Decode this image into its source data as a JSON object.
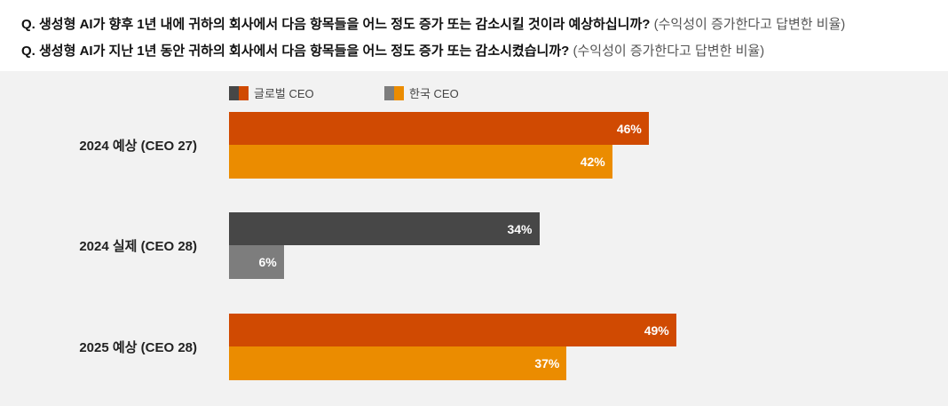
{
  "questions": [
    {
      "text": "Q. 생성형 AI가 향후 1년 내에 귀하의 회사에서 다음 항목들을 어느 정도 증가 또는 감소시킬 것이라 예상하십니까?",
      "note": "(수익성이 증가한다고 답변한 비율)"
    },
    {
      "text": "Q. 생성형 AI가 지난 1년 동안 귀하의 회사에서 다음 항목들을 어느 정도 증가 또는 감소시켰습니까?",
      "note": "(수익성이 증가한다고 답변한 비율)"
    }
  ],
  "chart_data": {
    "type": "bar",
    "orientation": "horizontal",
    "xlim": [
      0,
      100
    ],
    "legend_position": "top",
    "legend": [
      {
        "name": "글로벌 CEO",
        "colors": [
          "#474747",
          "#d04a02"
        ]
      },
      {
        "name": "한국 CEO",
        "colors": [
          "#7d7d7d",
          "#eb8c00"
        ]
      }
    ],
    "categories": [
      "2024 예상 (CEO 27)",
      "2024 실제 (CEO 28)",
      "2025 예상 (CEO 28)"
    ],
    "series": [
      {
        "name": "글로벌 CEO",
        "values": [
          46,
          34,
          49
        ],
        "labels": [
          "46%",
          "34%",
          "49%"
        ],
        "colors": [
          "#d04a02",
          "#474747",
          "#d04a02"
        ]
      },
      {
        "name": "한국 CEO",
        "values": [
          42,
          6,
          37
        ],
        "labels": [
          "42%",
          "6%",
          "37%"
        ],
        "colors": [
          "#eb8c00",
          "#7d7d7d",
          "#eb8c00"
        ]
      }
    ]
  }
}
